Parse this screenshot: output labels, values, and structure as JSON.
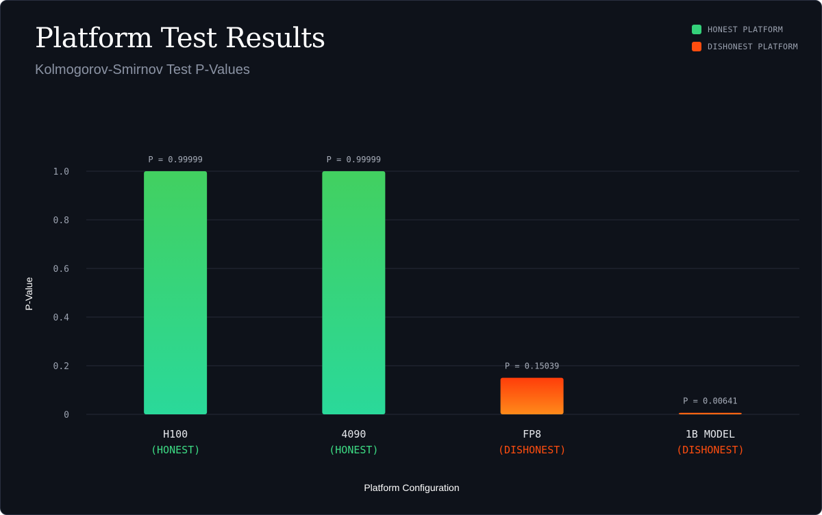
{
  "chart_data": {
    "type": "bar",
    "title": "Platform Test Results",
    "subtitle": "Kolmogorov-Smirnov Test P-Values",
    "xlabel": "Platform Configuration",
    "ylabel": "P-Value",
    "ylim": [
      0,
      1.0
    ],
    "yticks": [
      {
        "value": 0,
        "label": "0"
      },
      {
        "value": 0.2,
        "label": "0.2"
      },
      {
        "value": 0.4,
        "label": "0.4"
      },
      {
        "value": 0.6,
        "label": "0.6"
      },
      {
        "value": 0.8,
        "label": "0.8"
      },
      {
        "value": 1.0,
        "label": "1.0"
      }
    ],
    "grid": true,
    "legend_position": "top-right",
    "legend": [
      {
        "name": "HONEST PLATFORM",
        "color": "#34d17a"
      },
      {
        "name": "DISHONEST PLATFORM",
        "color": "#ff4d0f"
      }
    ],
    "categories": [
      "H100",
      "4090",
      "FP8",
      "1B MODEL"
    ],
    "bars": [
      {
        "category": "H100",
        "status": "(HONEST)",
        "value": 0.99999,
        "value_label": "P = 0.99999",
        "group": "honest"
      },
      {
        "category": "4090",
        "status": "(HONEST)",
        "value": 0.99999,
        "value_label": "P = 0.99999",
        "group": "honest"
      },
      {
        "category": "FP8",
        "status": "(DISHONEST)",
        "value": 0.15039,
        "value_label": "P = 0.15039",
        "group": "dishonest"
      },
      {
        "category": "1B MODEL",
        "status": "(DISHONEST)",
        "value": 0.00641,
        "value_label": "P = 0.00641",
        "group": "dishonest"
      }
    ],
    "colors": {
      "honest_top": "#42d060",
      "honest_bottom": "#2ad99a",
      "dishonest_top": "#ff3d0a",
      "dishonest_bottom": "#ff8a1a",
      "honest_text": "#3ddc84",
      "dishonest_text": "#ff4d0f",
      "grid": "#252b38"
    }
  }
}
